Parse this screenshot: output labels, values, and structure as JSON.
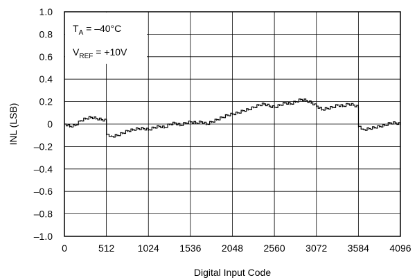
{
  "chart_data": {
    "type": "line",
    "title": "",
    "xlabel": "Digital Input Code",
    "ylabel": "INL (LSB)",
    "xlim": [
      0,
      4096
    ],
    "ylim": [
      -1.0,
      1.0
    ],
    "x_ticks": [
      0,
      512,
      1024,
      1536,
      2048,
      2560,
      3072,
      3584,
      4096
    ],
    "x_tick_labels": [
      "0",
      "512",
      "1024",
      "1536",
      "2048",
      "2560",
      "3072",
      "3584",
      "4096"
    ],
    "y_ticks": [
      1.0,
      0.8,
      0.6,
      0.4,
      0.2,
      0,
      -0.2,
      -0.4,
      -0.6,
      -0.8,
      -1.0
    ],
    "y_tick_labels": [
      "1.0",
      "0.8",
      "0.6",
      "0.4",
      "0.2",
      "0",
      "–0.2",
      "–0.4",
      "–0.6",
      "–0.8",
      "–1.0"
    ],
    "grid": true,
    "annotations": {
      "line1": {
        "main": "T",
        "sub": "A",
        "rest": " = –40°C"
      },
      "line2": {
        "main": "V",
        "sub": "REF",
        "rest": " = +10V"
      }
    },
    "series": [
      {
        "color": "#000000",
        "x": [
          0,
          64,
          128,
          192,
          256,
          320,
          384,
          448,
          512,
          513,
          576,
          640,
          704,
          768,
          832,
          896,
          960,
          1024,
          1088,
          1152,
          1216,
          1280,
          1344,
          1408,
          1472,
          1536,
          1600,
          1664,
          1728,
          1792,
          1856,
          1920,
          1984,
          2048,
          2112,
          2176,
          2240,
          2304,
          2368,
          2432,
          2496,
          2560,
          2624,
          2688,
          2752,
          2816,
          2880,
          2944,
          3008,
          3072,
          3136,
          3200,
          3264,
          3328,
          3392,
          3456,
          3520,
          3584,
          3585,
          3648,
          3712,
          3776,
          3840,
          3904,
          3968,
          4032,
          4096
        ],
        "y": [
          0.0,
          -0.02,
          -0.01,
          0.03,
          0.05,
          0.06,
          0.05,
          0.04,
          0.03,
          -0.09,
          -0.11,
          -0.1,
          -0.08,
          -0.06,
          -0.05,
          -0.04,
          -0.04,
          -0.05,
          -0.03,
          -0.02,
          -0.03,
          0.0,
          0.01,
          -0.01,
          0.01,
          0.02,
          0.01,
          0.02,
          0.0,
          0.02,
          0.04,
          0.06,
          0.08,
          0.09,
          0.1,
          0.12,
          0.13,
          0.15,
          0.17,
          0.18,
          0.16,
          0.15,
          0.17,
          0.19,
          0.18,
          0.2,
          0.22,
          0.21,
          0.19,
          0.16,
          0.13,
          0.14,
          0.15,
          0.17,
          0.16,
          0.18,
          0.17,
          0.15,
          -0.02,
          -0.05,
          -0.04,
          -0.03,
          -0.02,
          -0.01,
          0.01,
          0.01,
          0.0
        ]
      }
    ]
  }
}
